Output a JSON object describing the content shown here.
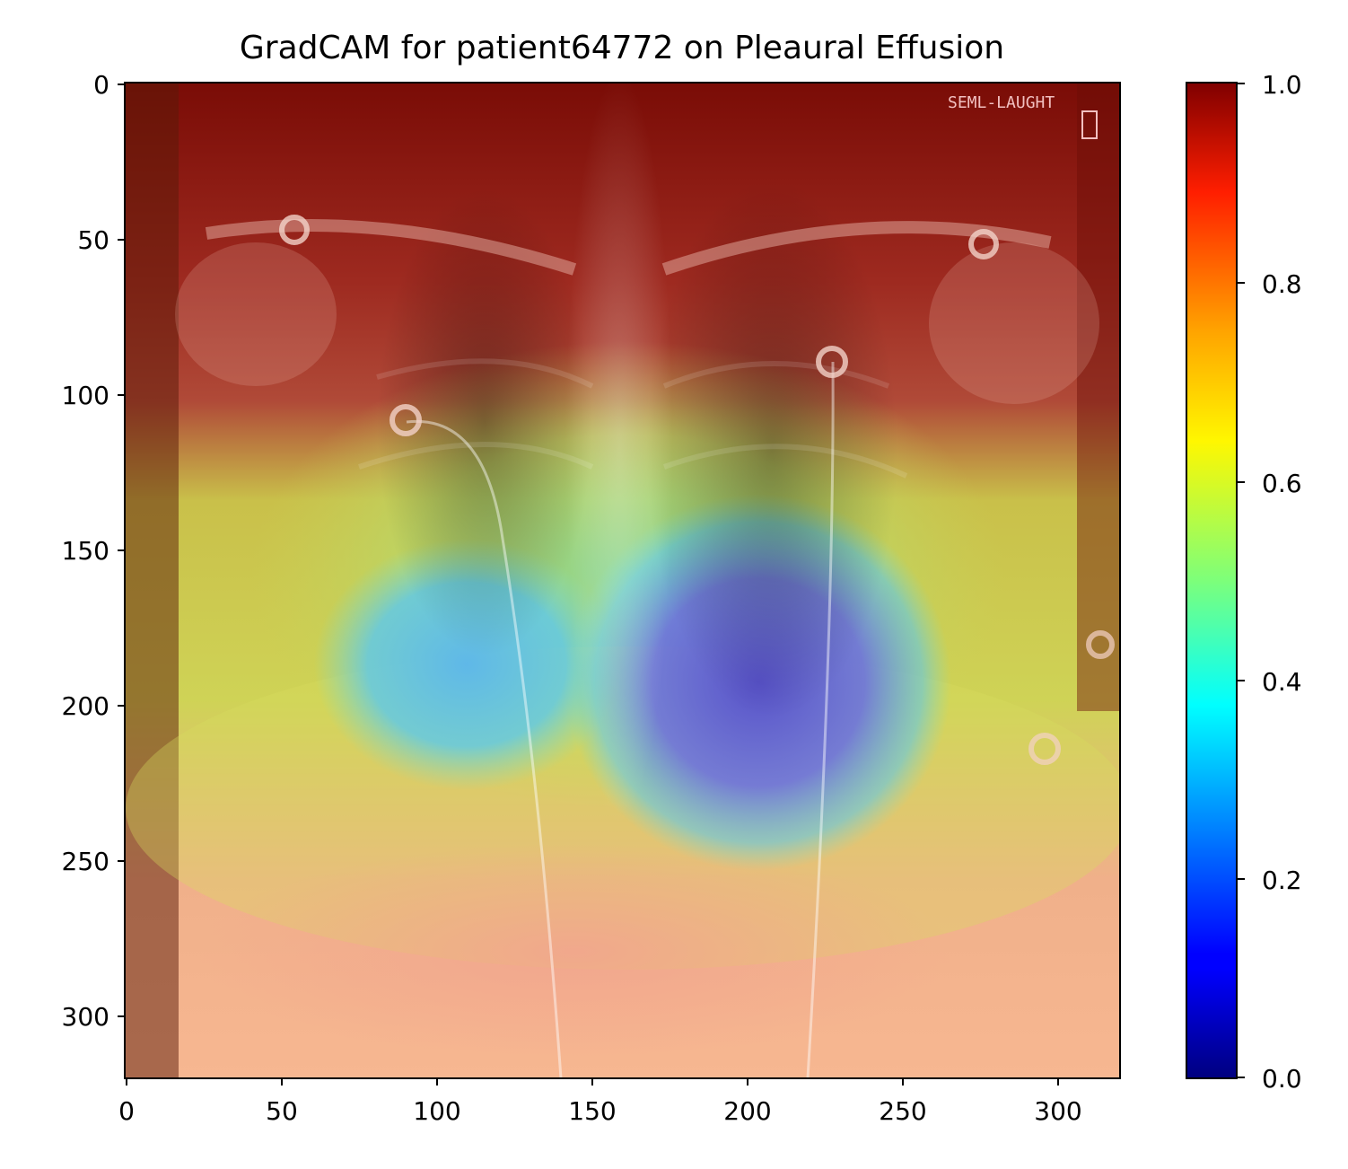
{
  "title": "GradCAM for patient64772 on Pleaural Effusion",
  "image": {
    "x_ticks": [
      "0",
      "50",
      "100",
      "150",
      "200",
      "250",
      "300"
    ],
    "y_ticks": [
      "0",
      "50",
      "100",
      "150",
      "200",
      "250",
      "300"
    ],
    "x_range": [
      0,
      320
    ],
    "y_range": [
      0,
      320
    ],
    "overlay_text": "SEML-LAUGHT"
  },
  "colorbar": {
    "colormap": "jet",
    "ticks": [
      "0.0",
      "0.2",
      "0.4",
      "0.6",
      "0.8",
      "1.0"
    ],
    "range": [
      0.0,
      1.0
    ]
  }
}
